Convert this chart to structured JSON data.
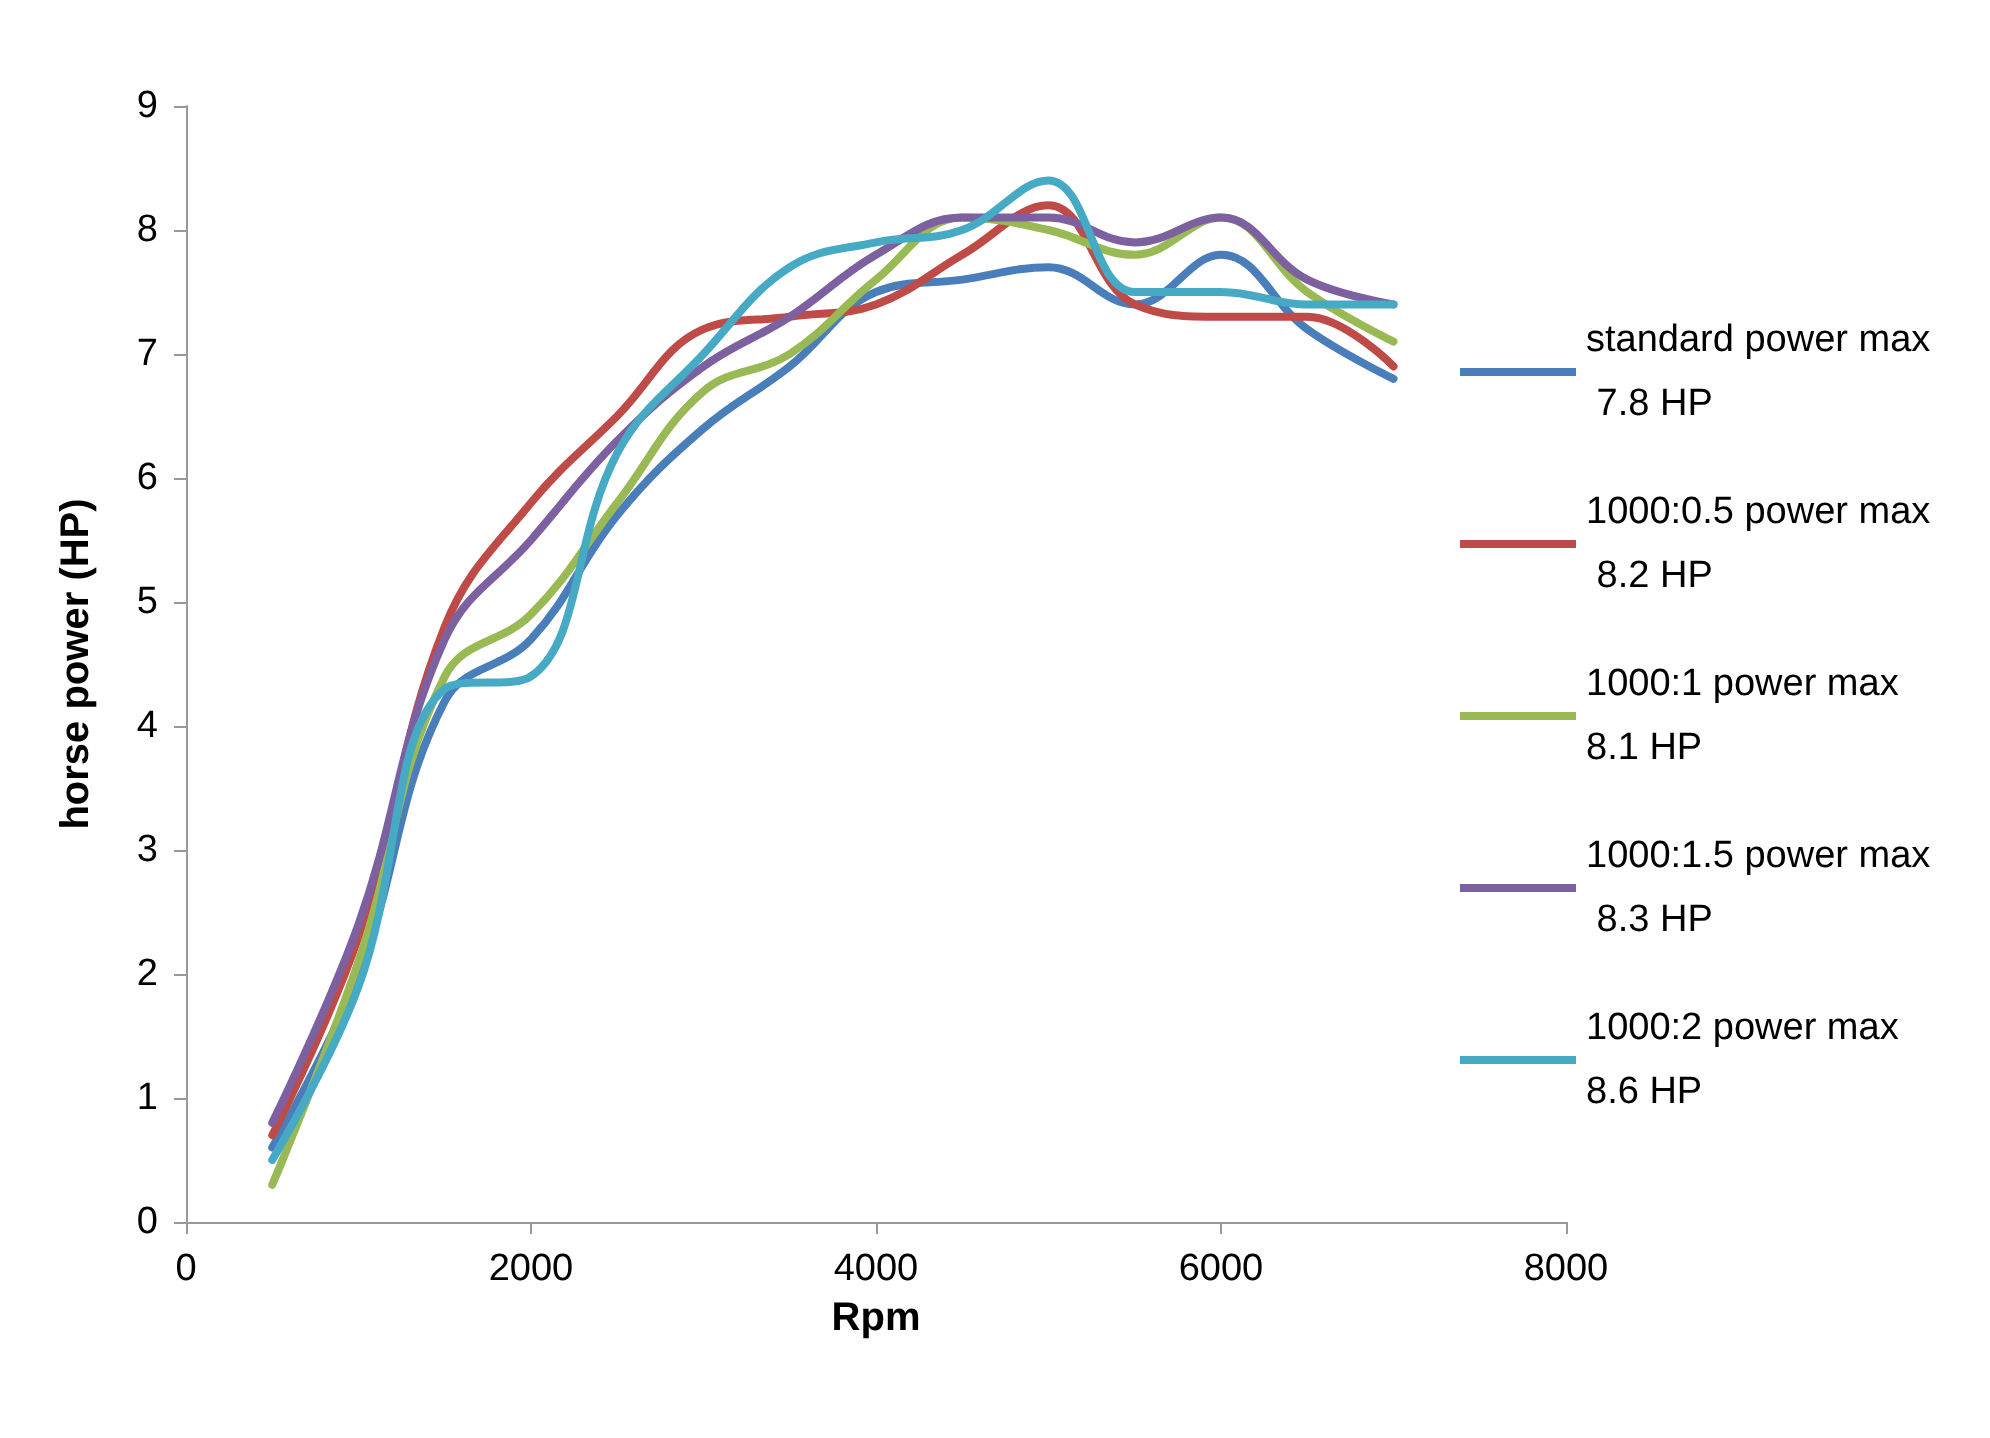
{
  "chart_data": {
    "type": "line",
    "xlabel": "Rpm",
    "ylabel": "horse power (HP)",
    "x": [
      500,
      1000,
      1500,
      2000,
      2500,
      3000,
      3500,
      4000,
      4500,
      5000,
      5500,
      6000,
      6500,
      7000
    ],
    "xlim": [
      0,
      8000
    ],
    "xticks": [
      0,
      2000,
      4000,
      6000,
      8000
    ],
    "ylim": [
      0,
      9
    ],
    "yticks": [
      0,
      1,
      2,
      3,
      4,
      5,
      6,
      7,
      8,
      9
    ],
    "grid": false,
    "legend": "right",
    "marker": "none",
    "line_style": "solid",
    "series": [
      {
        "name": "standard power max 7.8 HP",
        "color": "#4a7ebb",
        "values": [
          0.6,
          2.0,
          4.2,
          4.7,
          5.7,
          6.4,
          6.9,
          7.5,
          7.6,
          7.7,
          7.4,
          7.8,
          7.2,
          6.8
        ]
      },
      {
        "name": "1000:0.5 power max 8.2 HP",
        "color": "#be4b48",
        "values": [
          0.7,
          2.3,
          4.8,
          5.8,
          6.5,
          7.2,
          7.3,
          7.4,
          7.8,
          8.2,
          7.4,
          7.3,
          7.3,
          6.9
        ]
      },
      {
        "name": "1000:1 power max 8.1 HP",
        "color": "#98b954",
        "values": [
          0.3,
          2.1,
          4.4,
          4.9,
          5.8,
          6.7,
          7.0,
          7.6,
          8.1,
          8.0,
          7.8,
          8.1,
          7.5,
          7.1
        ]
      },
      {
        "name": "1000:1.5 power max 8.3 HP",
        "color": "#7d60a0",
        "values": [
          0.8,
          2.4,
          4.7,
          5.5,
          6.3,
          6.9,
          7.3,
          7.8,
          8.1,
          8.1,
          7.9,
          8.1,
          7.6,
          7.4
        ]
      },
      {
        "name": "1000:2 power max 8.6 HP",
        "color": "#46aac5",
        "values": [
          0.5,
          1.9,
          4.3,
          4.4,
          6.2,
          7.0,
          7.7,
          7.9,
          8.0,
          8.4,
          7.5,
          7.5,
          7.4,
          7.4
        ]
      }
    ]
  }
}
